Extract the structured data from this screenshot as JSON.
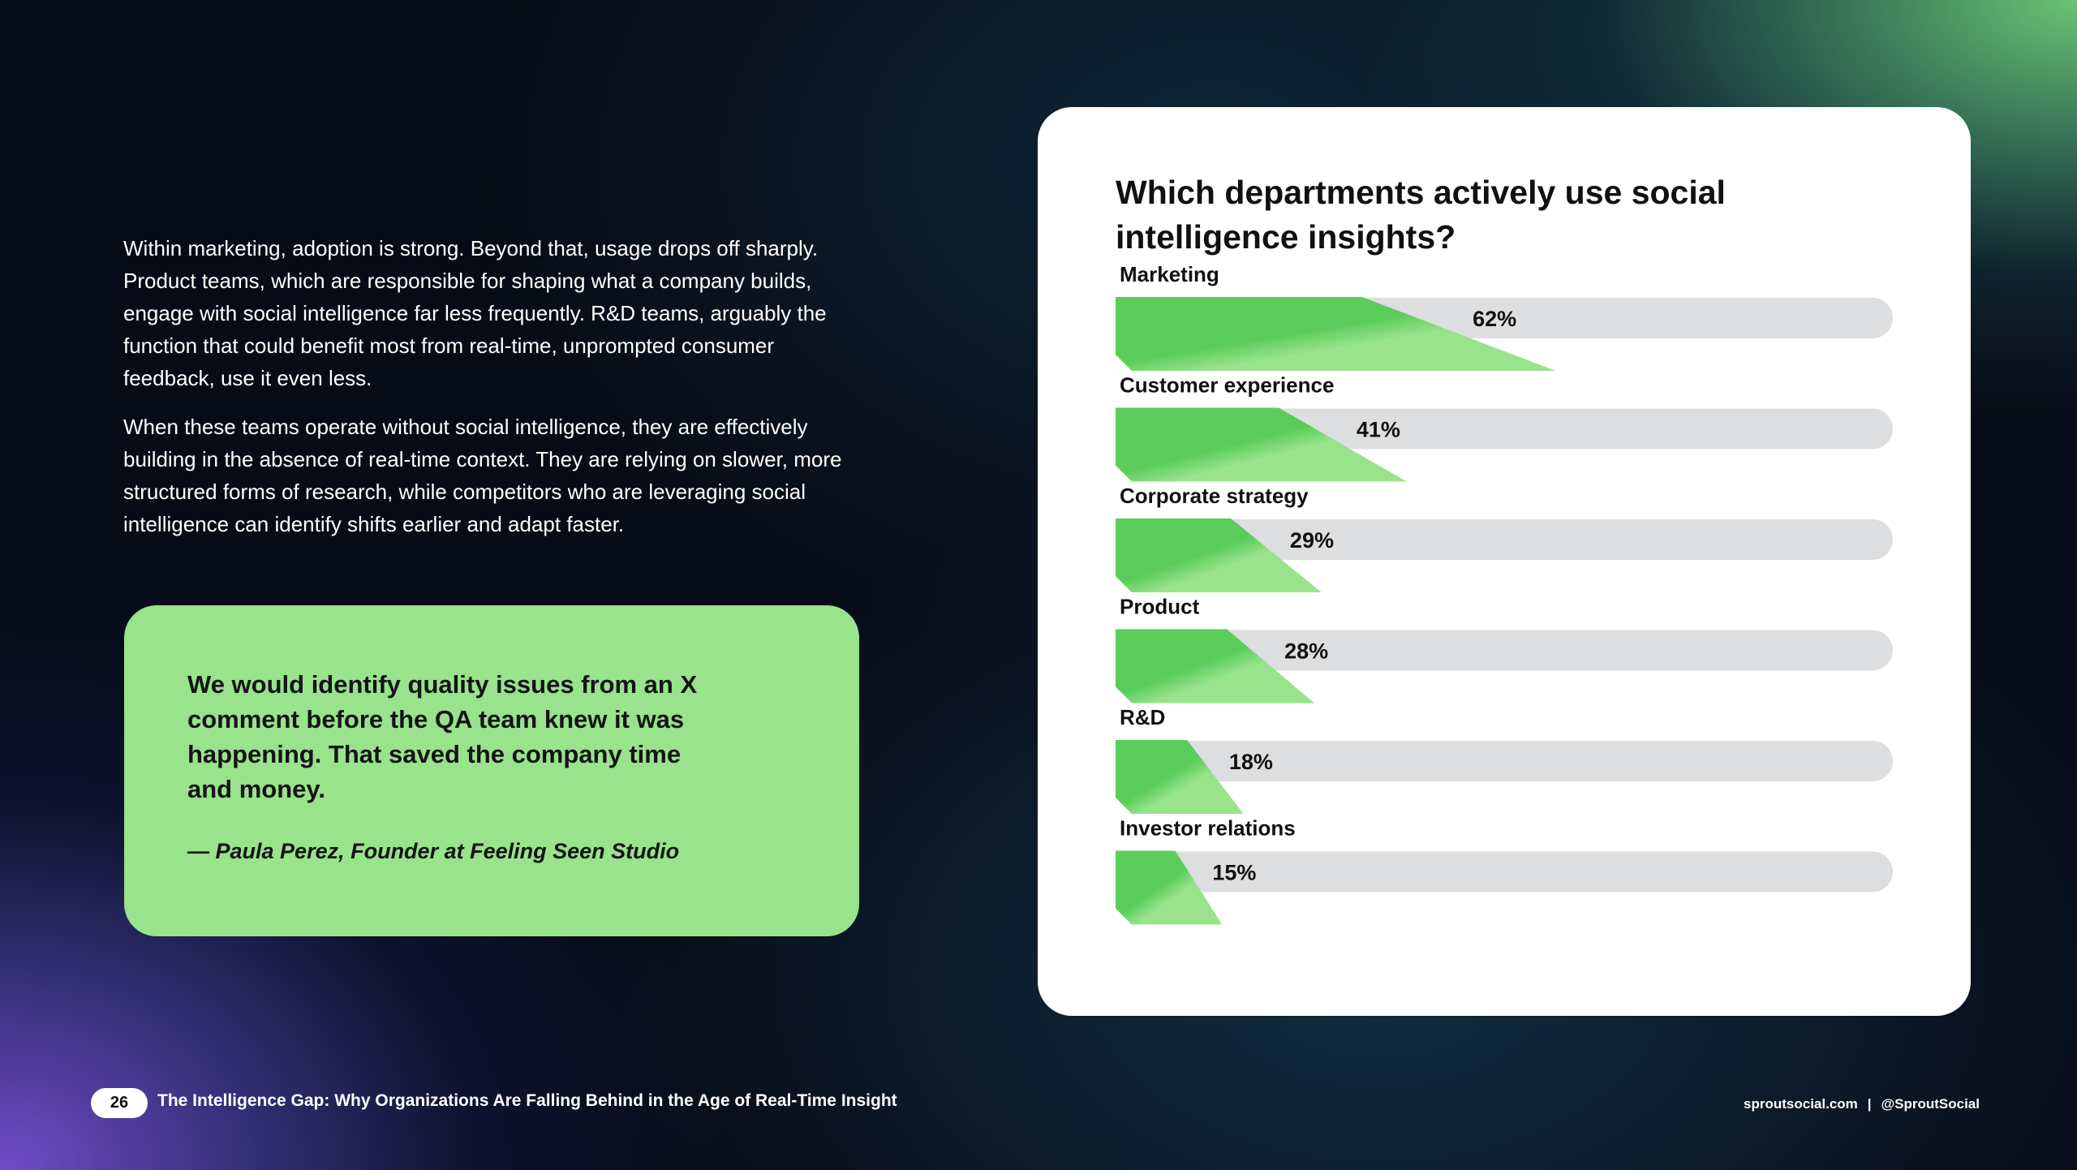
{
  "body_text": {
    "paragraph_1": "Within marketing, adoption is strong. Beyond that, usage drops off sharply. Product teams, which are responsible for shaping what a company builds, engage with social intelligence far less frequently. R&D teams, arguably the function that could benefit most from real-time, unprompted consumer feedback, use it even less.",
    "paragraph_2": "When these teams operate without social intelligence, they are effectively building in the absence of real-time context. They are relying on slower, more structured forms of research, while competitors who are leveraging social intelligence can identify shifts earlier and adapt faster."
  },
  "quote": {
    "text": "We would identify quality issues from an X comment before the QA team knew it was happening. That saved the company time and money.",
    "author": "— Paula Perez, Founder at Feeling Seen Studio"
  },
  "chart_data": {
    "type": "bar",
    "orientation": "horizontal",
    "title": "Which departments actively use social intelligence insights?",
    "categories": [
      "Marketing",
      "Customer experience",
      "Corporate strategy",
      "Product",
      "R&D",
      "Investor relations"
    ],
    "values": [
      62,
      41,
      29,
      28,
      18,
      15
    ],
    "value_labels": [
      "62%",
      "41%",
      "29%",
      "28%",
      "18%",
      "15%"
    ],
    "unit": "%",
    "xlim": [
      0,
      100
    ],
    "colors": {
      "bar": "#5bcd5b",
      "bar_light": "#98e38c",
      "track": "#dcdee0",
      "label": "#111111"
    }
  },
  "footer": {
    "page_number": "26",
    "title": "The Intelligence Gap: Why Organizations Are Falling Behind in the Age of Real-Time Insight",
    "website": "sproutsocial.com",
    "separator": "|",
    "handle": "@SproutSocial"
  }
}
